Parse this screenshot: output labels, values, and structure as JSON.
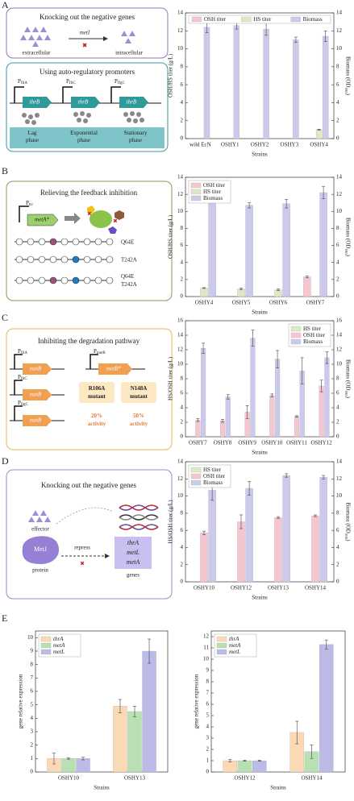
{
  "diagrams": {
    "panel_labels": [
      "A",
      "B",
      "C",
      "D",
      "E"
    ],
    "A": {
      "box1_title": "Knocking out the negative genes",
      "gene": "metI",
      "left": "extracellular",
      "right": "intracellular",
      "box2_title": "Using auto-regulatory promoters",
      "promoters": [
        {
          "p": "P",
          "sub": "fliA"
        },
        {
          "p": "P",
          "sub": "fliC"
        },
        {
          "p": "P",
          "sub": "flgC"
        }
      ],
      "genes": [
        "thrB",
        "thrB",
        "thrB"
      ],
      "phases": [
        [
          "Lag",
          "phase"
        ],
        [
          "Exponential",
          "phase"
        ],
        [
          "Stationary",
          "phase"
        ]
      ]
    },
    "B": {
      "title": "Relieving the feedback inhibition",
      "promoter": {
        "p": "P",
        "sub": "trc"
      },
      "gene": "metA*",
      "mutants": [
        [
          "Q64E"
        ],
        [
          "T242A"
        ],
        [
          "Q64E",
          "T242A"
        ]
      ]
    },
    "C": {
      "title": "Inhibiting the degradation pathway",
      "promoters": [
        {
          "p": "P",
          "sub": "fliA"
        },
        {
          "p": "P",
          "sub": "fliC"
        },
        {
          "p": "P",
          "sub": "flgC"
        }
      ],
      "genes": [
        "metB",
        "metB",
        "metB"
      ],
      "promoter2": {
        "p": "P",
        "sub": "metB"
      },
      "gene2": "metB*",
      "mutants": [
        [
          "R106A",
          "mutant"
        ],
        [
          "N148A",
          "mutant"
        ]
      ],
      "activities": [
        [
          "20%",
          "activity"
        ],
        [
          "50%",
          "activity"
        ]
      ]
    },
    "D": {
      "title": "Knocking out the negative genes",
      "effector": "effector",
      "protein_name": "MetJ",
      "protein": "protein",
      "repress": "repress",
      "genes": [
        "thrA",
        "metL",
        "metA"
      ],
      "genes_label": "genes"
    }
  },
  "chart_data": [
    {
      "type": "bar",
      "categories": [
        "wild EcN",
        "OSHY1",
        "OSHY2",
        "OSHY3",
        "OSHY4"
      ],
      "series": [
        {
          "name": "OSH titer",
          "color": "#f6c6d0",
          "values": [
            0,
            0,
            0,
            0,
            0
          ],
          "errors": [
            null,
            null,
            null,
            null,
            null
          ]
        },
        {
          "name": "HS titer",
          "color": "#dde9c6",
          "values": [
            0,
            0,
            0,
            0,
            1.0
          ],
          "errors": [
            null,
            null,
            null,
            null,
            0.05
          ]
        },
        {
          "name": "Biomass",
          "color": "#cbcaec",
          "axis": "y2",
          "values": [
            12.4,
            12.6,
            12.2,
            11.0,
            11.4
          ],
          "errors": [
            0.6,
            0.4,
            0.7,
            0.3,
            0.6
          ]
        }
      ],
      "xlabel": "Strains",
      "ylabel": "OSH/HS titer (g/L)",
      "y2label": "Biomass (OD₆₀₀)",
      "ylim": [
        0,
        14
      ],
      "yticks": [
        0,
        2,
        4,
        6,
        8,
        10,
        12,
        14
      ],
      "y2lim": [
        0,
        14
      ],
      "y2ticks": [
        0,
        2,
        4,
        6,
        8,
        10,
        12,
        14
      ],
      "legend": "top"
    },
    {
      "type": "bar",
      "categories": [
        "OSHY4",
        "OSHY5",
        "OSHY6",
        "OSHY7"
      ],
      "series": [
        {
          "name": "OSH titer",
          "color": "#f6c6d0",
          "values": [
            0,
            0,
            0,
            2.3
          ],
          "errors": [
            null,
            null,
            null,
            0.1
          ]
        },
        {
          "name": "HS titer",
          "color": "#dde9c6",
          "values": [
            1.0,
            0.9,
            0.8,
            0
          ],
          "errors": [
            0.05,
            0.1,
            0.1,
            null
          ]
        },
        {
          "name": "Biomass",
          "color": "#cbcaec",
          "axis": "y2",
          "values": [
            11.5,
            10.7,
            10.9,
            12.2
          ],
          "errors": [
            0.5,
            0.3,
            0.5,
            0.7
          ]
        }
      ],
      "xlabel": "Strains",
      "ylabel": "OSH/HS titer (g/L)",
      "y2label": "Biomass (OD₆₀₀)",
      "ylim": [
        0,
        14
      ],
      "yticks": [
        0,
        2,
        4,
        6,
        8,
        10,
        12,
        14
      ],
      "y2lim": [
        0,
        14
      ],
      "y2ticks": [
        0,
        2,
        4,
        6,
        8,
        10,
        12,
        14
      ],
      "legend": "upper left"
    },
    {
      "type": "bar",
      "categories": [
        "OSHY7",
        "OSHY8",
        "OSHY9",
        "OSHY10",
        "OSHY11",
        "OSHY12"
      ],
      "series": [
        {
          "name": "HS titer",
          "color": "#dde9c6",
          "values": [
            0,
            0,
            0,
            0,
            0,
            0
          ],
          "errors": [
            null,
            null,
            null,
            null,
            null,
            null
          ]
        },
        {
          "name": "OSH titer",
          "color": "#f6c6d0",
          "values": [
            2.3,
            2.2,
            3.4,
            5.7,
            2.8,
            7.0
          ],
          "errors": [
            0.2,
            0.2,
            0.9,
            0.2,
            0.1,
            0.8
          ]
        },
        {
          "name": "Biomass",
          "color": "#cbcaec",
          "axis": "y2",
          "values": [
            12.2,
            5.5,
            13.6,
            10.7,
            9.1,
            10.9
          ],
          "errors": [
            0.7,
            0.3,
            1.1,
            1.2,
            1.8,
            0.8
          ]
        }
      ],
      "xlabel": "Strains",
      "ylabel": "HS/OSH titer (g/L)",
      "y2label": "Biomass (OD₆₀₀)",
      "ylim": [
        0,
        16
      ],
      "yticks": [
        0,
        2,
        4,
        6,
        8,
        10,
        12,
        14,
        16
      ],
      "y2lim": [
        0,
        16
      ],
      "y2ticks": [
        0,
        2,
        4,
        6,
        8,
        10,
        12,
        14,
        16
      ],
      "legend": "upper right"
    },
    {
      "type": "bar",
      "categories": [
        "OSHY10",
        "OSHY12",
        "OSHY13",
        "OSHY14"
      ],
      "series": [
        {
          "name": "HS titer",
          "color": "#dde9c6",
          "values": [
            0,
            0,
            0,
            0
          ],
          "errors": [
            null,
            null,
            null,
            null
          ]
        },
        {
          "name": "OSH titer",
          "color": "#f6c6d0",
          "values": [
            5.7,
            7.0,
            7.5,
            7.7
          ],
          "errors": [
            0.2,
            0.8,
            0.1,
            0.1
          ]
        },
        {
          "name": "Biomass",
          "color": "#cbcaec",
          "axis": "y2",
          "values": [
            10.7,
            10.9,
            12.4,
            12.2
          ],
          "errors": [
            1.2,
            0.8,
            0.2,
            0.2
          ]
        }
      ],
      "xlabel": "Strains",
      "ylabel": "HS/OSH titer (g/L)",
      "y2label": "Biomass (OD₆₀₀)",
      "ylim": [
        0,
        14
      ],
      "yticks": [
        0,
        2,
        4,
        6,
        8,
        10,
        12,
        14
      ],
      "y2lim": [
        0,
        14
      ],
      "y2ticks": [
        0,
        2,
        4,
        6,
        8,
        10,
        12,
        14
      ],
      "legend": "upper left"
    },
    {
      "type": "bar",
      "categories": [
        "OSHY10",
        "OSHY13"
      ],
      "series": [
        {
          "name": "thrA",
          "color": "#fbd9b5",
          "values": [
            1.0,
            4.9
          ],
          "errors": [
            0.4,
            0.5
          ]
        },
        {
          "name": "metA",
          "color": "#b8e0b2",
          "values": [
            1.0,
            4.5
          ],
          "errors": [
            0.05,
            0.4
          ]
        },
        {
          "name": "metL",
          "color": "#bcbbe7",
          "values": [
            1.0,
            9.0
          ],
          "errors": [
            0.1,
            0.9
          ]
        }
      ],
      "xlabel": "Strains",
      "ylabel": "gene relative expression",
      "ylim": [
        0,
        10.5
      ],
      "yticks": [
        0,
        1,
        2,
        3,
        4,
        5,
        6,
        7,
        8,
        9,
        10
      ],
      "legend": "upper left"
    },
    {
      "type": "bar",
      "categories": [
        "OSHY12",
        "OSHY14"
      ],
      "series": [
        {
          "name": "thrA",
          "color": "#fbd9b5",
          "values": [
            1.0,
            3.5
          ],
          "errors": [
            0.1,
            1.0
          ]
        },
        {
          "name": "metA",
          "color": "#b8e0b2",
          "values": [
            1.0,
            1.8
          ],
          "errors": [
            0.05,
            0.6
          ]
        },
        {
          "name": "metL",
          "color": "#bcbbe7",
          "values": [
            1.0,
            11.3
          ],
          "errors": [
            0.05,
            0.4
          ]
        }
      ],
      "xlabel": "Strains",
      "ylabel": "gene relative expression",
      "ylim": [
        0,
        12.5
      ],
      "yticks": [
        0,
        1,
        2,
        3,
        4,
        5,
        6,
        7,
        8,
        9,
        10,
        11,
        12
      ],
      "legend": "upper left"
    }
  ]
}
